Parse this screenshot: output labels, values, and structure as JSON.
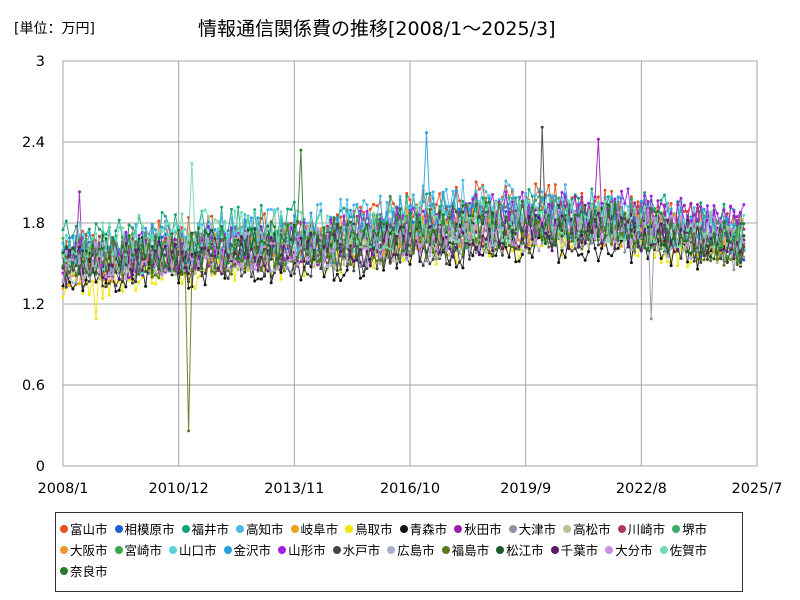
{
  "chart_data": {
    "type": "line",
    "title": "情報通信関係費の推移[2008/1～2025/3]",
    "unit_label": "[単位：万円]",
    "xlabel": "",
    "ylabel": "",
    "x_range": [
      "2008/1",
      "2025/7"
    ],
    "x_ticks": [
      "2008/1",
      "2010/12",
      "2013/11",
      "2016/10",
      "2019/9",
      "2022/8",
      "2025/7"
    ],
    "ylim": [
      0,
      3
    ],
    "y_ticks": [
      "0",
      "0.6",
      "1.2",
      "1.8",
      "2.4",
      "3"
    ],
    "grid": true,
    "legend_position": "bottom",
    "series": [
      {
        "name": "富山市",
        "color": "#e8501e",
        "base": [
          1.55,
          1.7,
          1.75,
          1.95,
          1.9,
          1.7
        ],
        "amp": 0.17
      },
      {
        "name": "相模原市",
        "color": "#1f5fd6",
        "base": [
          1.5,
          1.6,
          1.65,
          1.8,
          1.8,
          1.65
        ],
        "amp": 0.15
      },
      {
        "name": "福井市",
        "color": "#13a37a",
        "base": [
          1.7,
          1.75,
          1.8,
          1.9,
          1.9,
          1.75
        ],
        "amp": 0.17
      },
      {
        "name": "高知市",
        "color": "#4cb8e8",
        "base": [
          1.6,
          1.65,
          1.8,
          1.95,
          1.9,
          1.7
        ],
        "amp": 0.18
      },
      {
        "name": "岐阜市",
        "color": "#e8a317",
        "base": [
          1.45,
          1.55,
          1.7,
          1.8,
          1.75,
          1.65
        ],
        "amp": 0.15
      },
      {
        "name": "鳥取市",
        "color": "#f2e600",
        "base": [
          1.35,
          1.45,
          1.55,
          1.65,
          1.7,
          1.55
        ],
        "amp": 0.14
      },
      {
        "name": "青森市",
        "color": "#111111",
        "base": [
          1.4,
          1.45,
          1.5,
          1.6,
          1.65,
          1.55
        ],
        "amp": 0.13
      },
      {
        "name": "秋田市",
        "color": "#9a1fb0",
        "base": [
          1.5,
          1.55,
          1.65,
          1.8,
          1.85,
          1.75
        ],
        "amp": 0.16
      },
      {
        "name": "大津市",
        "color": "#8a96a8",
        "base": [
          1.5,
          1.55,
          1.6,
          1.7,
          1.75,
          1.55
        ],
        "amp": 0.15
      },
      {
        "name": "高松市",
        "color": "#b4c490",
        "base": [
          1.5,
          1.55,
          1.6,
          1.7,
          1.75,
          1.6
        ],
        "amp": 0.14
      },
      {
        "name": "川崎市",
        "color": "#b03a5a",
        "base": [
          1.55,
          1.6,
          1.7,
          1.8,
          1.85,
          1.75
        ],
        "amp": 0.14
      },
      {
        "name": "堺市",
        "color": "#3aaa6a",
        "base": [
          1.55,
          1.6,
          1.7,
          1.85,
          1.85,
          1.7
        ],
        "amp": 0.15
      },
      {
        "name": "大阪市",
        "color": "#e89a2a",
        "base": [
          1.5,
          1.6,
          1.65,
          1.75,
          1.8,
          1.7
        ],
        "amp": 0.14
      },
      {
        "name": "宮崎市",
        "color": "#3aa84a",
        "base": [
          1.55,
          1.6,
          1.65,
          1.75,
          1.8,
          1.65
        ],
        "amp": 0.15
      },
      {
        "name": "山口市",
        "color": "#5ad0d8",
        "base": [
          1.55,
          1.6,
          1.7,
          1.85,
          1.85,
          1.7
        ],
        "amp": 0.16
      },
      {
        "name": "金沢市",
        "color": "#2aa0d8",
        "base": [
          1.6,
          1.65,
          1.75,
          1.9,
          1.85,
          1.7
        ],
        "amp": 0.16
      },
      {
        "name": "山形市",
        "color": "#a020e0",
        "base": [
          1.55,
          1.6,
          1.7,
          1.85,
          1.9,
          1.8
        ],
        "amp": 0.17
      },
      {
        "name": "水戸市",
        "color": "#444444",
        "base": [
          1.45,
          1.5,
          1.55,
          1.65,
          1.75,
          1.6
        ],
        "amp": 0.14
      },
      {
        "name": "広島市",
        "color": "#a8b0d0",
        "base": [
          1.45,
          1.55,
          1.6,
          1.7,
          1.75,
          1.6
        ],
        "amp": 0.14
      },
      {
        "name": "福島市",
        "color": "#5a7a1a",
        "base": [
          1.5,
          1.55,
          1.6,
          1.7,
          1.75,
          1.6
        ],
        "amp": 0.15
      },
      {
        "name": "松江市",
        "color": "#1a5a2a",
        "base": [
          1.55,
          1.6,
          1.65,
          1.75,
          1.8,
          1.65
        ],
        "amp": 0.15
      },
      {
        "name": "千葉市",
        "color": "#5a1a6a",
        "base": [
          1.5,
          1.55,
          1.6,
          1.7,
          1.75,
          1.65
        ],
        "amp": 0.14
      },
      {
        "name": "大分市",
        "color": "#c890e0",
        "base": [
          1.5,
          1.55,
          1.65,
          1.75,
          1.8,
          1.7
        ],
        "amp": 0.14
      },
      {
        "name": "佐賀市",
        "color": "#70dcb0",
        "base": [
          1.65,
          1.75,
          1.75,
          1.8,
          1.8,
          1.7
        ],
        "amp": 0.17
      },
      {
        "name": "奈良市",
        "color": "#2a7a2a",
        "base": [
          1.55,
          1.6,
          1.7,
          1.8,
          1.8,
          1.65
        ],
        "amp": 0.16
      }
    ],
    "annotations": [
      {
        "series": "福島市",
        "date": "2011/3",
        "value": 0.26
      },
      {
        "series": "奈良市",
        "date": "2014/1",
        "value": 2.34
      },
      {
        "series": "水戸市",
        "date": "2020/2",
        "value": 2.51
      },
      {
        "series": "金沢市",
        "date": "2017/3",
        "value": 2.47
      },
      {
        "series": "秋田市",
        "date": "2021/7",
        "value": 2.42
      },
      {
        "series": "佐賀市",
        "date": "2011/4",
        "value": 2.24
      },
      {
        "series": "秋田市",
        "date": "2008/6",
        "value": 2.03
      },
      {
        "series": "鳥取市",
        "date": "2008/11",
        "value": 1.09
      },
      {
        "series": "大津市",
        "date": "2022/11",
        "value": 1.09
      }
    ]
  },
  "legend_items": [
    "富山市",
    "相模原市",
    "福井市",
    "高知市",
    "岐阜市",
    "鳥取市",
    "青森市",
    "秋田市",
    "大津市",
    "高松市",
    "川崎市",
    "堺市",
    "大阪市",
    "宮崎市",
    "山口市",
    "金沢市",
    "山形市",
    "水戸市",
    "広島市",
    "福島市",
    "松江市",
    "千葉市",
    "大分市",
    "佐賀市",
    "奈良市"
  ]
}
